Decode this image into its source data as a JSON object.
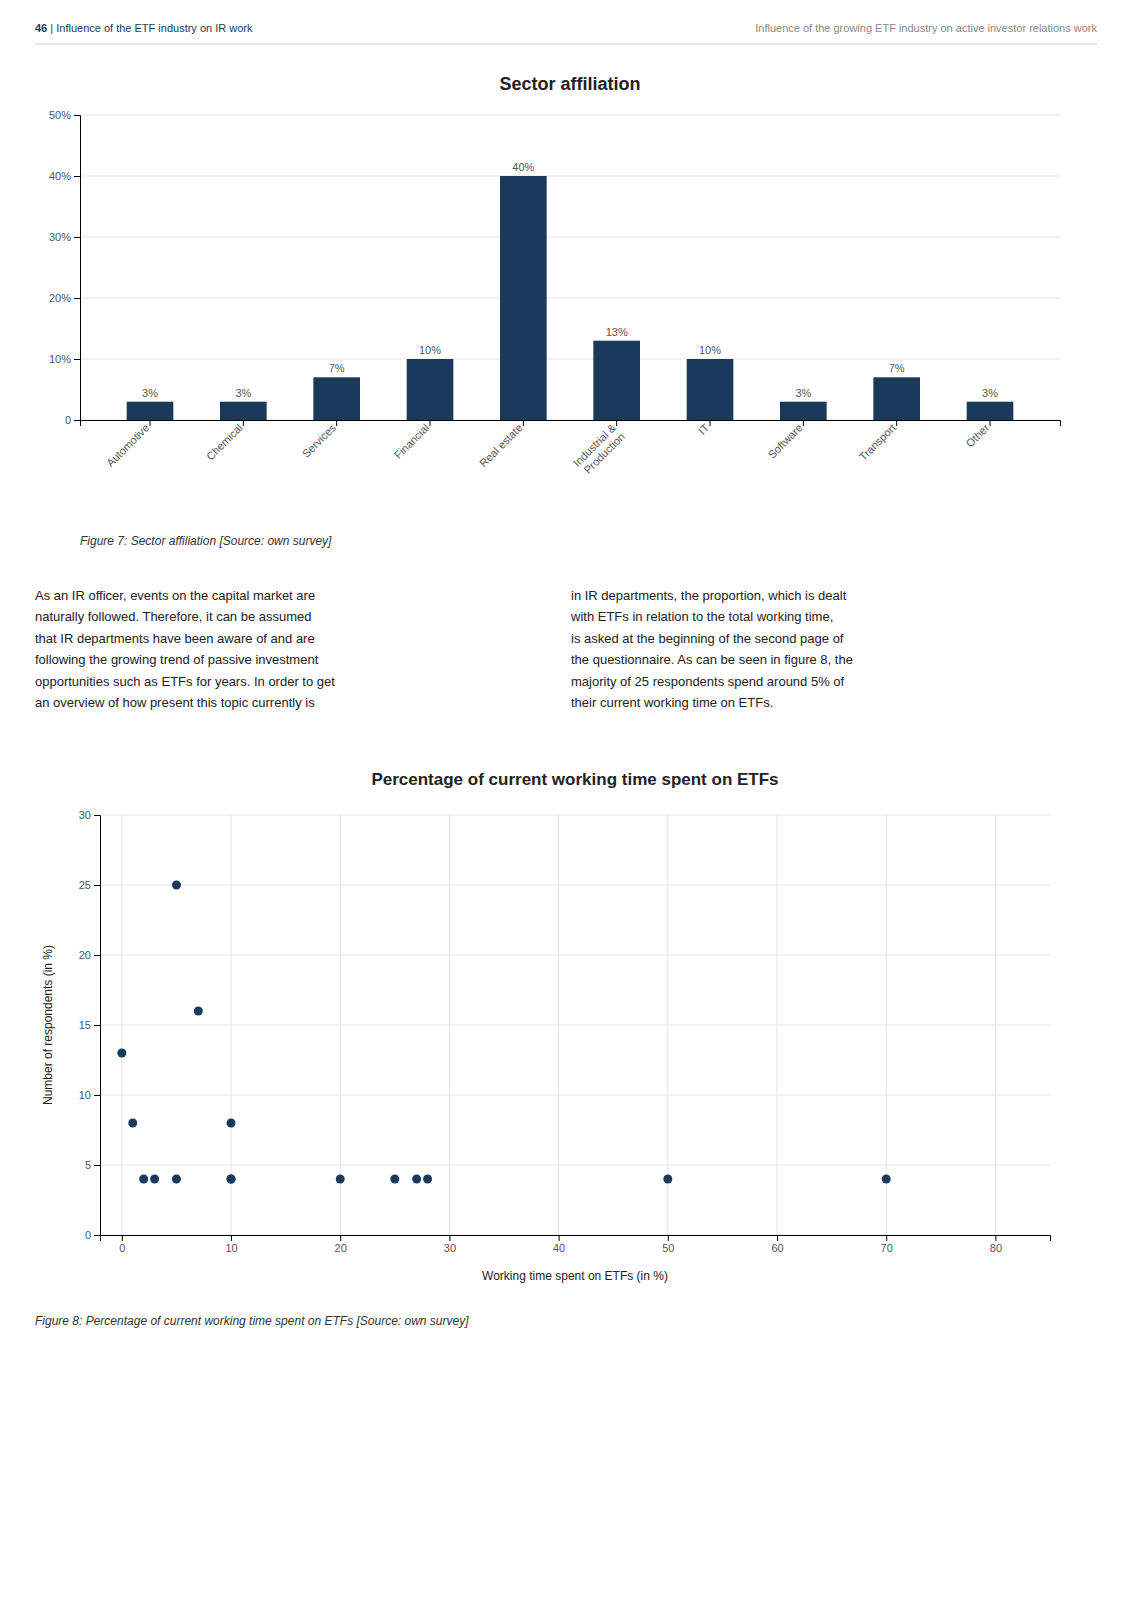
{
  "page_header": {
    "number": "46",
    "separator": " | ",
    "left": "Influence of the ETF industry on IR work",
    "right": "Influence of the growing ETF industry on active investor relations work"
  },
  "body_text": [
    "As an IR officer, events on the capital market are\nnaturally followed. Therefore, it can be assumed\nthat IR departments have been aware of and are\nfollowing the growing trend of passive investment\nopportunities such as ETFs for years. In order to get\nan overview of how present this topic currently is",
    "in IR departments, the proportion, which is dealt\nwith ETFs in relation to the total working time,\nis asked at the beginning of the second page of\nthe questionnaire. As can be seen in figure 8, the\nmajority of 25 respondents spend around 5% of\ntheir current working time on ETFs."
  ],
  "chart_data": [
    {
      "type": "bar",
      "title": "Sector affiliation",
      "caption": "Figure 7: Sector affiliation [Source: own survey]",
      "categories": [
        "Automotive",
        "Chemical",
        "Services",
        "Financial",
        "Real estate",
        "Industrial &\nProduction",
        "IT",
        "Software",
        "Transport",
        "Other"
      ],
      "values": [
        3,
        3,
        7,
        10,
        40,
        13,
        10,
        3,
        7,
        3
      ],
      "value_labels": [
        "3%",
        "3%",
        "7%",
        "10%",
        "40%",
        "13%",
        "10%",
        "3%",
        "7%",
        "3%"
      ],
      "data_labels": true,
      "color": "#1a3a5c",
      "ylim": [
        0,
        50
      ],
      "yticks": [
        0,
        {
          "value": 10,
          "label": "10%"
        },
        {
          "value": 20,
          "label": "20%"
        },
        {
          "value": 30,
          "label": "30%"
        },
        {
          "value": 40,
          "label": "40%"
        },
        {
          "value": 50,
          "label": "50%"
        }
      ],
      "grid": true
    },
    {
      "type": "scatter",
      "title": "Percentage of current working time spent on ETFs",
      "caption": "Figure 8: Percentage of current working time spent on ETFs [Source: own survey]",
      "x": [
        0,
        1,
        2,
        3,
        5,
        5,
        7,
        10,
        10,
        10,
        20,
        25,
        27,
        28,
        50,
        70
      ],
      "values": [
        13,
        8,
        4,
        4,
        25,
        4,
        16,
        4,
        8,
        4,
        4,
        4,
        4,
        4,
        4,
        4
      ],
      "color": "#1a3a5c",
      "xlim": [
        -2,
        85
      ],
      "ylim": [
        0,
        30
      ],
      "xticks": [
        0,
        10,
        20,
        30,
        40,
        50,
        60,
        70,
        80
      ],
      "yticks": [
        0,
        5,
        10,
        15,
        20,
        25,
        30
      ],
      "xlabel": "Working time spent on ETFs (in %)",
      "ylabel": "Number of respondents (in %)",
      "grid": true
    }
  ]
}
